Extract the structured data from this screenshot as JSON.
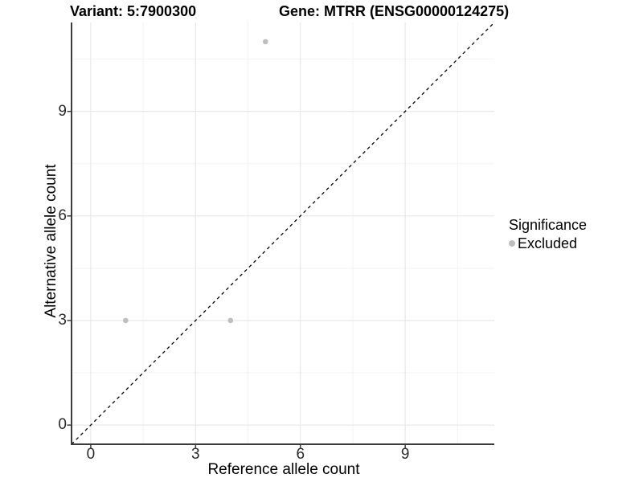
{
  "chart_data": {
    "type": "scatter",
    "title_left": "Variant: 5:7900300",
    "title_right": "Gene: MTRR (ENSG00000124275)",
    "xlabel": "Reference allele count",
    "ylabel": "Alternative allele count",
    "xlim": [
      -0.55,
      11.55
    ],
    "ylim": [
      -0.55,
      11.55
    ],
    "x_ticks": [
      0,
      3,
      6,
      9
    ],
    "y_ticks": [
      0,
      3,
      6,
      9
    ],
    "x_minor_ticks": [
      1.5,
      4.5,
      7.5,
      10.5
    ],
    "y_minor_ticks": [
      1.5,
      4.5,
      7.5,
      10.5
    ],
    "grid": true,
    "points": [
      {
        "x": 1,
        "y": 3,
        "series": "Excluded"
      },
      {
        "x": 4,
        "y": 3,
        "series": "Excluded"
      },
      {
        "x": 5,
        "y": 11,
        "series": "Excluded"
      }
    ],
    "identity_line": {
      "type": "y=x",
      "style": "dashed"
    },
    "legend": {
      "position": "right",
      "title": "Significance",
      "entries": [
        {
          "label": "Excluded",
          "color": "#bebebe"
        }
      ]
    },
    "colors": {
      "point": "#bebebe",
      "axis": "#3c3c3c",
      "grid_major": "#e8e8e8",
      "grid_minor": "#f2f2f2",
      "dashed_line": "#000000",
      "background": "#ffffff"
    }
  }
}
